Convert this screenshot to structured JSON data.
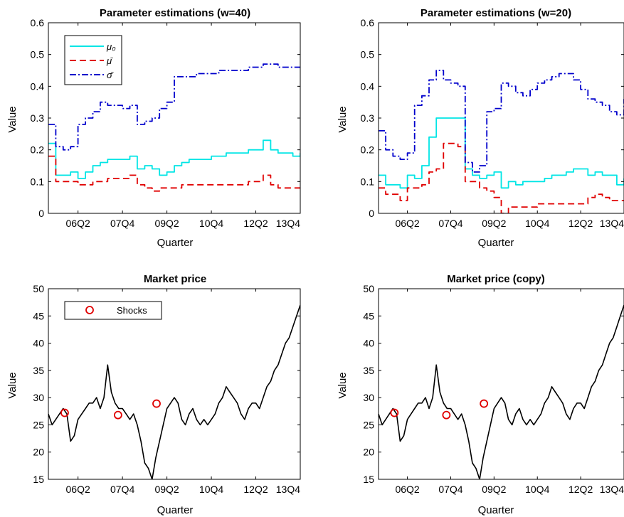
{
  "chart_data": [
    {
      "id": "w40",
      "type": "line",
      "title": "Parameter estimations (w=40)",
      "xlabel": "Quarter",
      "ylabel": "Value",
      "xlim": [
        0,
        34
      ],
      "ylim": [
        0,
        0.6
      ],
      "xticks": [
        {
          "pos": 4,
          "label": "06Q2"
        },
        {
          "pos": 10,
          "label": "07Q4"
        },
        {
          "pos": 16,
          "label": "09Q2"
        },
        {
          "pos": 22,
          "label": "10Q4"
        },
        {
          "pos": 28,
          "label": "12Q2"
        },
        {
          "pos": 34,
          "label": "13Q4"
        }
      ],
      "yticks": [
        "0",
        "0.1",
        "0.2",
        "0.3",
        "0.4",
        "0.5",
        "0.6"
      ],
      "legend": {
        "placement": "top-left",
        "entries": [
          "μ₀",
          "μ̄",
          "σ̄"
        ]
      },
      "series": [
        {
          "name": "μ₀",
          "color": "#00e5e5",
          "dash": "solid",
          "x": [
            0,
            1,
            2,
            3,
            4,
            5,
            6,
            7,
            8,
            9,
            10,
            11,
            12,
            13,
            14,
            15,
            16,
            17,
            18,
            19,
            20,
            21,
            22,
            23,
            24,
            25,
            26,
            27,
            28,
            29,
            30,
            31,
            32,
            33,
            34
          ],
          "y": [
            0.22,
            0.12,
            0.12,
            0.13,
            0.11,
            0.13,
            0.15,
            0.16,
            0.17,
            0.17,
            0.17,
            0.18,
            0.14,
            0.15,
            0.14,
            0.12,
            0.13,
            0.15,
            0.16,
            0.17,
            0.17,
            0.17,
            0.18,
            0.18,
            0.19,
            0.19,
            0.19,
            0.2,
            0.2,
            0.23,
            0.2,
            0.19,
            0.19,
            0.18,
            0.19
          ]
        },
        {
          "name": "μ̄",
          "color": "#e00000",
          "dash": "dashed",
          "x": [
            0,
            1,
            2,
            3,
            4,
            5,
            6,
            7,
            8,
            9,
            10,
            11,
            12,
            13,
            14,
            15,
            16,
            17,
            18,
            19,
            20,
            21,
            22,
            23,
            24,
            25,
            26,
            27,
            28,
            29,
            30,
            31,
            32,
            33,
            34
          ],
          "y": [
            0.18,
            0.1,
            0.1,
            0.1,
            0.09,
            0.09,
            0.1,
            0.1,
            0.11,
            0.11,
            0.11,
            0.12,
            0.09,
            0.08,
            0.07,
            0.08,
            0.08,
            0.08,
            0.09,
            0.09,
            0.09,
            0.09,
            0.09,
            0.09,
            0.09,
            0.09,
            0.09,
            0.1,
            0.1,
            0.12,
            0.09,
            0.08,
            0.08,
            0.08,
            0.08
          ]
        },
        {
          "name": "σ̄",
          "color": "#0000cc",
          "dash": "dashdot",
          "x": [
            0,
            1,
            2,
            3,
            4,
            5,
            6,
            7,
            8,
            9,
            10,
            11,
            12,
            13,
            14,
            15,
            16,
            17,
            18,
            19,
            20,
            21,
            22,
            23,
            24,
            25,
            26,
            27,
            28,
            29,
            30,
            31,
            32,
            33,
            34
          ],
          "y": [
            0.28,
            0.21,
            0.2,
            0.21,
            0.28,
            0.3,
            0.32,
            0.35,
            0.34,
            0.34,
            0.33,
            0.34,
            0.28,
            0.29,
            0.3,
            0.33,
            0.35,
            0.43,
            0.43,
            0.43,
            0.44,
            0.44,
            0.44,
            0.45,
            0.45,
            0.45,
            0.45,
            0.46,
            0.46,
            0.47,
            0.47,
            0.46,
            0.46,
            0.46,
            0.46
          ]
        }
      ]
    },
    {
      "id": "w20",
      "type": "line",
      "title": "Parameter estimations (w=20)",
      "xlabel": "Quarter",
      "ylabel": "Value",
      "xlim": [
        0,
        34
      ],
      "ylim": [
        0,
        0.6
      ],
      "xticks": [
        {
          "pos": 4,
          "label": "06Q2"
        },
        {
          "pos": 10,
          "label": "07Q4"
        },
        {
          "pos": 16,
          "label": "09Q2"
        },
        {
          "pos": 22,
          "label": "10Q4"
        },
        {
          "pos": 28,
          "label": "12Q2"
        },
        {
          "pos": 34,
          "label": "13Q4"
        }
      ],
      "yticks": [
        "0",
        "0.1",
        "0.2",
        "0.3",
        "0.4",
        "0.5",
        "0.6"
      ],
      "series": [
        {
          "name": "μ₀",
          "color": "#00e5e5",
          "dash": "solid",
          "x": [
            0,
            1,
            2,
            3,
            4,
            5,
            6,
            7,
            8,
            9,
            10,
            11,
            12,
            13,
            14,
            15,
            16,
            17,
            18,
            19,
            20,
            21,
            22,
            23,
            24,
            25,
            26,
            27,
            28,
            29,
            30,
            31,
            32,
            33,
            34
          ],
          "y": [
            0.12,
            0.09,
            0.09,
            0.08,
            0.12,
            0.11,
            0.15,
            0.24,
            0.3,
            0.3,
            0.3,
            0.3,
            0.14,
            0.12,
            0.11,
            0.12,
            0.13,
            0.08,
            0.1,
            0.09,
            0.1,
            0.1,
            0.1,
            0.11,
            0.12,
            0.12,
            0.13,
            0.14,
            0.14,
            0.12,
            0.13,
            0.12,
            0.12,
            0.09,
            0.11
          ]
        },
        {
          "name": "μ̄",
          "color": "#e00000",
          "dash": "dashed",
          "x": [
            0,
            1,
            2,
            3,
            4,
            5,
            6,
            7,
            8,
            9,
            10,
            11,
            12,
            13,
            14,
            15,
            16,
            17,
            18,
            19,
            20,
            21,
            22,
            23,
            24,
            25,
            26,
            27,
            28,
            29,
            30,
            31,
            32,
            33,
            34
          ],
          "y": [
            0.08,
            0.06,
            0.06,
            0.04,
            0.08,
            0.08,
            0.09,
            0.13,
            0.14,
            0.22,
            0.22,
            0.21,
            0.1,
            0.1,
            0.08,
            0.07,
            0.05,
            0.0,
            0.02,
            0.02,
            0.02,
            0.02,
            0.03,
            0.03,
            0.03,
            0.03,
            0.03,
            0.03,
            0.03,
            0.05,
            0.06,
            0.05,
            0.04,
            0.04,
            0.04
          ]
        },
        {
          "name": "σ̄",
          "color": "#0000cc",
          "dash": "dashdot",
          "x": [
            0,
            1,
            2,
            3,
            4,
            5,
            6,
            7,
            8,
            9,
            10,
            11,
            12,
            13,
            14,
            15,
            16,
            17,
            18,
            19,
            20,
            21,
            22,
            23,
            24,
            25,
            26,
            27,
            28,
            29,
            30,
            31,
            32,
            33,
            34
          ],
          "y": [
            0.26,
            0.2,
            0.18,
            0.17,
            0.19,
            0.34,
            0.37,
            0.42,
            0.45,
            0.42,
            0.41,
            0.4,
            0.16,
            0.13,
            0.15,
            0.32,
            0.33,
            0.41,
            0.4,
            0.38,
            0.37,
            0.39,
            0.41,
            0.42,
            0.43,
            0.44,
            0.44,
            0.42,
            0.39,
            0.36,
            0.35,
            0.34,
            0.32,
            0.31,
            0.36
          ]
        }
      ]
    },
    {
      "id": "price",
      "type": "line",
      "title": "Market price",
      "xlabel": "Quarter",
      "ylabel": "Value",
      "xlim": [
        0,
        34
      ],
      "ylim": [
        15,
        50
      ],
      "xticks": [
        {
          "pos": 4,
          "label": "06Q2"
        },
        {
          "pos": 10,
          "label": "07Q4"
        },
        {
          "pos": 16,
          "label": "09Q2"
        },
        {
          "pos": 22,
          "label": "10Q4"
        },
        {
          "pos": 28,
          "label": "12Q2"
        },
        {
          "pos": 34,
          "label": "13Q4"
        }
      ],
      "yticks": [
        "15",
        "20",
        "25",
        "30",
        "35",
        "40",
        "45",
        "50"
      ],
      "legend": {
        "placement": "top-left",
        "entries": [
          "Shocks"
        ]
      },
      "series": [
        {
          "name": "",
          "color": "#000000",
          "x": [
            0,
            0.5,
            1,
            1.5,
            2,
            2.5,
            3,
            3.5,
            4,
            4.5,
            5,
            5.5,
            6,
            6.5,
            7,
            7.5,
            8,
            8.5,
            9,
            9.5,
            10,
            10.5,
            11,
            11.5,
            12,
            12.5,
            13,
            13.5,
            14,
            14.5,
            15,
            15.5,
            16,
            16.5,
            17,
            17.5,
            18,
            18.5,
            19,
            19.5,
            20,
            20.5,
            21,
            21.5,
            22,
            22.5,
            23,
            23.5,
            24,
            24.5,
            25,
            25.5,
            26,
            26.5,
            27,
            27.5,
            28,
            28.5,
            29,
            29.5,
            30,
            30.5,
            31,
            31.5,
            32,
            32.5,
            33,
            33.5,
            34
          ],
          "y": [
            27,
            25,
            26,
            27,
            28,
            27,
            22,
            23,
            26,
            27,
            28,
            29,
            29,
            30,
            28,
            30,
            36,
            31,
            29,
            28,
            28,
            27,
            26,
            27,
            25,
            22,
            18,
            17,
            15,
            19,
            22,
            25,
            28,
            29,
            30,
            29,
            26,
            25,
            27,
            28,
            26,
            25,
            26,
            25,
            26,
            27,
            29,
            30,
            32,
            31,
            30,
            29,
            27,
            26,
            28,
            29,
            29,
            28,
            30,
            32,
            33,
            35,
            36,
            38,
            40,
            41,
            43,
            45,
            47
          ]
        }
      ],
      "shocks": [
        {
          "x": 2.2,
          "y": 27.2
        },
        {
          "x": 9.4,
          "y": 26.8
        },
        {
          "x": 14.6,
          "y": 28.9
        }
      ]
    },
    {
      "id": "price-copy",
      "type": "line",
      "title": "Market price (copy)",
      "xlabel": "Quarter",
      "ylabel": "Value",
      "xlim": [
        0,
        34
      ],
      "ylim": [
        15,
        50
      ],
      "xticks": [
        {
          "pos": 4,
          "label": "06Q2"
        },
        {
          "pos": 10,
          "label": "07Q4"
        },
        {
          "pos": 16,
          "label": "09Q2"
        },
        {
          "pos": 22,
          "label": "10Q4"
        },
        {
          "pos": 28,
          "label": "12Q2"
        },
        {
          "pos": 34,
          "label": "13Q4"
        }
      ],
      "yticks": [
        "15",
        "20",
        "25",
        "30",
        "35",
        "40",
        "45",
        "50"
      ],
      "series": [
        {
          "name": "",
          "color": "#000000",
          "x": [
            0,
            0.5,
            1,
            1.5,
            2,
            2.5,
            3,
            3.5,
            4,
            4.5,
            5,
            5.5,
            6,
            6.5,
            7,
            7.5,
            8,
            8.5,
            9,
            9.5,
            10,
            10.5,
            11,
            11.5,
            12,
            12.5,
            13,
            13.5,
            14,
            14.5,
            15,
            15.5,
            16,
            16.5,
            17,
            17.5,
            18,
            18.5,
            19,
            19.5,
            20,
            20.5,
            21,
            21.5,
            22,
            22.5,
            23,
            23.5,
            24,
            24.5,
            25,
            25.5,
            26,
            26.5,
            27,
            27.5,
            28,
            28.5,
            29,
            29.5,
            30,
            30.5,
            31,
            31.5,
            32,
            32.5,
            33,
            33.5,
            34
          ],
          "y": [
            27,
            25,
            26,
            27,
            28,
            27,
            22,
            23,
            26,
            27,
            28,
            29,
            29,
            30,
            28,
            30,
            36,
            31,
            29,
            28,
            28,
            27,
            26,
            27,
            25,
            22,
            18,
            17,
            15,
            19,
            22,
            25,
            28,
            29,
            30,
            29,
            26,
            25,
            27,
            28,
            26,
            25,
            26,
            25,
            26,
            27,
            29,
            30,
            32,
            31,
            30,
            29,
            27,
            26,
            28,
            29,
            29,
            28,
            30,
            32,
            33,
            35,
            36,
            38,
            40,
            41,
            43,
            45,
            47
          ]
        }
      ],
      "shocks": [
        {
          "x": 2.2,
          "y": 27.2
        },
        {
          "x": 9.4,
          "y": 26.8
        },
        {
          "x": 14.6,
          "y": 28.9
        }
      ]
    }
  ]
}
